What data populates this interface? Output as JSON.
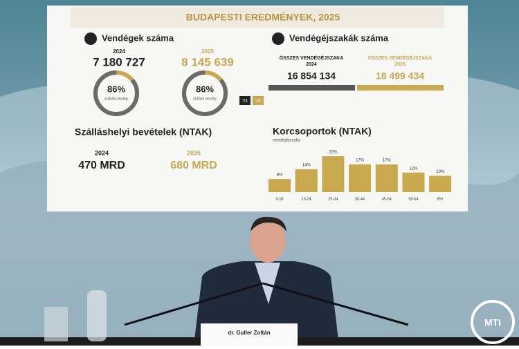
{
  "slide": {
    "title": "BUDAPESTI EREDMÉNYEK, 2025",
    "guests": {
      "heading": "Vendégek száma",
      "items": [
        {
          "year": "2024",
          "value": "7 180 727",
          "share": 86,
          "share_label": "86%",
          "share_caption": "külföldi vendég"
        },
        {
          "year": "2025",
          "value": "8 145 639",
          "share": 86,
          "share_label": "86%",
          "share_caption": "külföldi vendég"
        }
      ],
      "legend": [
        "'24",
        "'25"
      ]
    },
    "nights": {
      "heading": "Vendégéjszakák száma",
      "items": [
        {
          "label": "ÖSSZES VENDÉGÉJSZAKA",
          "year": "2024",
          "value": "16 854 134"
        },
        {
          "label": "ÖSSZES VENDÉGÉJSZAKA",
          "year": "2025",
          "value": "18 499 434"
        }
      ]
    },
    "revenue": {
      "heading": "Szálláshelyi bevételek (NTAK)",
      "items": [
        {
          "year": "2024",
          "value": "470 MRD"
        },
        {
          "year": "2025",
          "value": "680 MRD"
        }
      ]
    },
    "age_groups": {
      "heading": "Korcsoportok (NTAK)",
      "subtitle": "vendégéjszaka",
      "categories": [
        "0-18",
        "19-24",
        "25-34",
        "35-44",
        "45-54",
        "55-64",
        "65+"
      ],
      "values": [
        8,
        14,
        22,
        17,
        17,
        12,
        10
      ],
      "value_labels": [
        "8%",
        "14%",
        "22%",
        "17%",
        "17%",
        "12%",
        "10%"
      ],
      "color": "#c9a94e"
    }
  },
  "nameplate": "dr. Guller Zoltán",
  "watermark": "MTI"
}
